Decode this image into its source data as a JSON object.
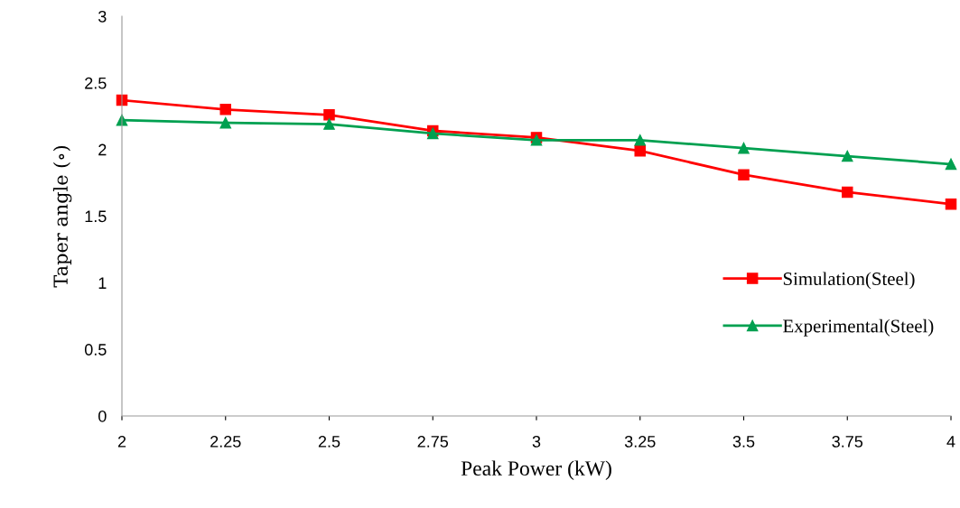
{
  "chart_data": {
    "type": "line",
    "xlabel": "Peak Power (kW)",
    "ylabel": "Taper angle (∘)",
    "x": [
      2,
      2.25,
      2.5,
      2.75,
      3,
      3.25,
      3.5,
      3.75,
      4
    ],
    "xlim": [
      2,
      4
    ],
    "xticks": [
      2,
      2.25,
      2.5,
      2.75,
      3,
      3.25,
      3.5,
      3.75,
      4
    ],
    "ylim": [
      0,
      3
    ],
    "yticks": [
      0,
      0.5,
      1,
      1.5,
      2,
      2.5,
      3
    ],
    "grid": false,
    "legend": "right",
    "line_style": "solid",
    "series": [
      {
        "name": "Simulation(Steel)",
        "color": "#ff0000",
        "marker": "square",
        "values": [
          2.37,
          2.3,
          2.26,
          2.14,
          2.09,
          1.99,
          1.81,
          1.68,
          1.59
        ]
      },
      {
        "name": "Experimental(Steel)",
        "color": "#00a050",
        "marker": "triangle",
        "values": [
          2.22,
          2.2,
          2.19,
          2.12,
          2.07,
          2.07,
          2.01,
          1.95,
          1.89
        ]
      }
    ]
  }
}
